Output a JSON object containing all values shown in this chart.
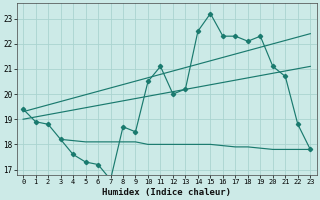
{
  "title": "",
  "xlabel": "Humidex (Indice chaleur)",
  "background_color": "#cceae7",
  "grid_color": "#aad4d0",
  "line_color": "#1a7a6e",
  "xlim": [
    -0.5,
    23.5
  ],
  "ylim": [
    16.8,
    23.6
  ],
  "yticks": [
    17,
    18,
    19,
    20,
    21,
    22,
    23
  ],
  "xticks": [
    0,
    1,
    2,
    3,
    4,
    5,
    6,
    7,
    8,
    9,
    10,
    11,
    12,
    13,
    14,
    15,
    16,
    17,
    18,
    19,
    20,
    21,
    22,
    23
  ],
  "main_x": [
    0,
    1,
    2,
    3,
    4,
    5,
    6,
    7,
    8,
    9,
    10,
    11,
    12,
    13,
    14,
    15,
    16,
    17,
    18,
    19,
    20,
    21,
    22,
    23
  ],
  "main_y": [
    19.4,
    18.9,
    18.8,
    18.2,
    17.6,
    17.3,
    17.2,
    16.6,
    18.7,
    18.5,
    20.5,
    21.1,
    20.0,
    20.2,
    22.5,
    23.2,
    22.3,
    22.3,
    22.1,
    22.3,
    21.1,
    20.7,
    18.8,
    17.8
  ],
  "trend1_x": [
    0,
    23
  ],
  "trend1_y": [
    19.3,
    22.4
  ],
  "trend2_x": [
    0,
    23
  ],
  "trend2_y": [
    19.0,
    21.1
  ],
  "flat_x": [
    3,
    4,
    5,
    6,
    7,
    8,
    9,
    10,
    11,
    12,
    13,
    14,
    15,
    16,
    17,
    18,
    19,
    20,
    21,
    22,
    23
  ],
  "flat_y": [
    18.2,
    18.15,
    18.1,
    18.1,
    18.1,
    18.1,
    18.1,
    18.0,
    18.0,
    18.0,
    18.0,
    18.0,
    18.0,
    17.95,
    17.9,
    17.9,
    17.85,
    17.8,
    17.8,
    17.8,
    17.8
  ]
}
